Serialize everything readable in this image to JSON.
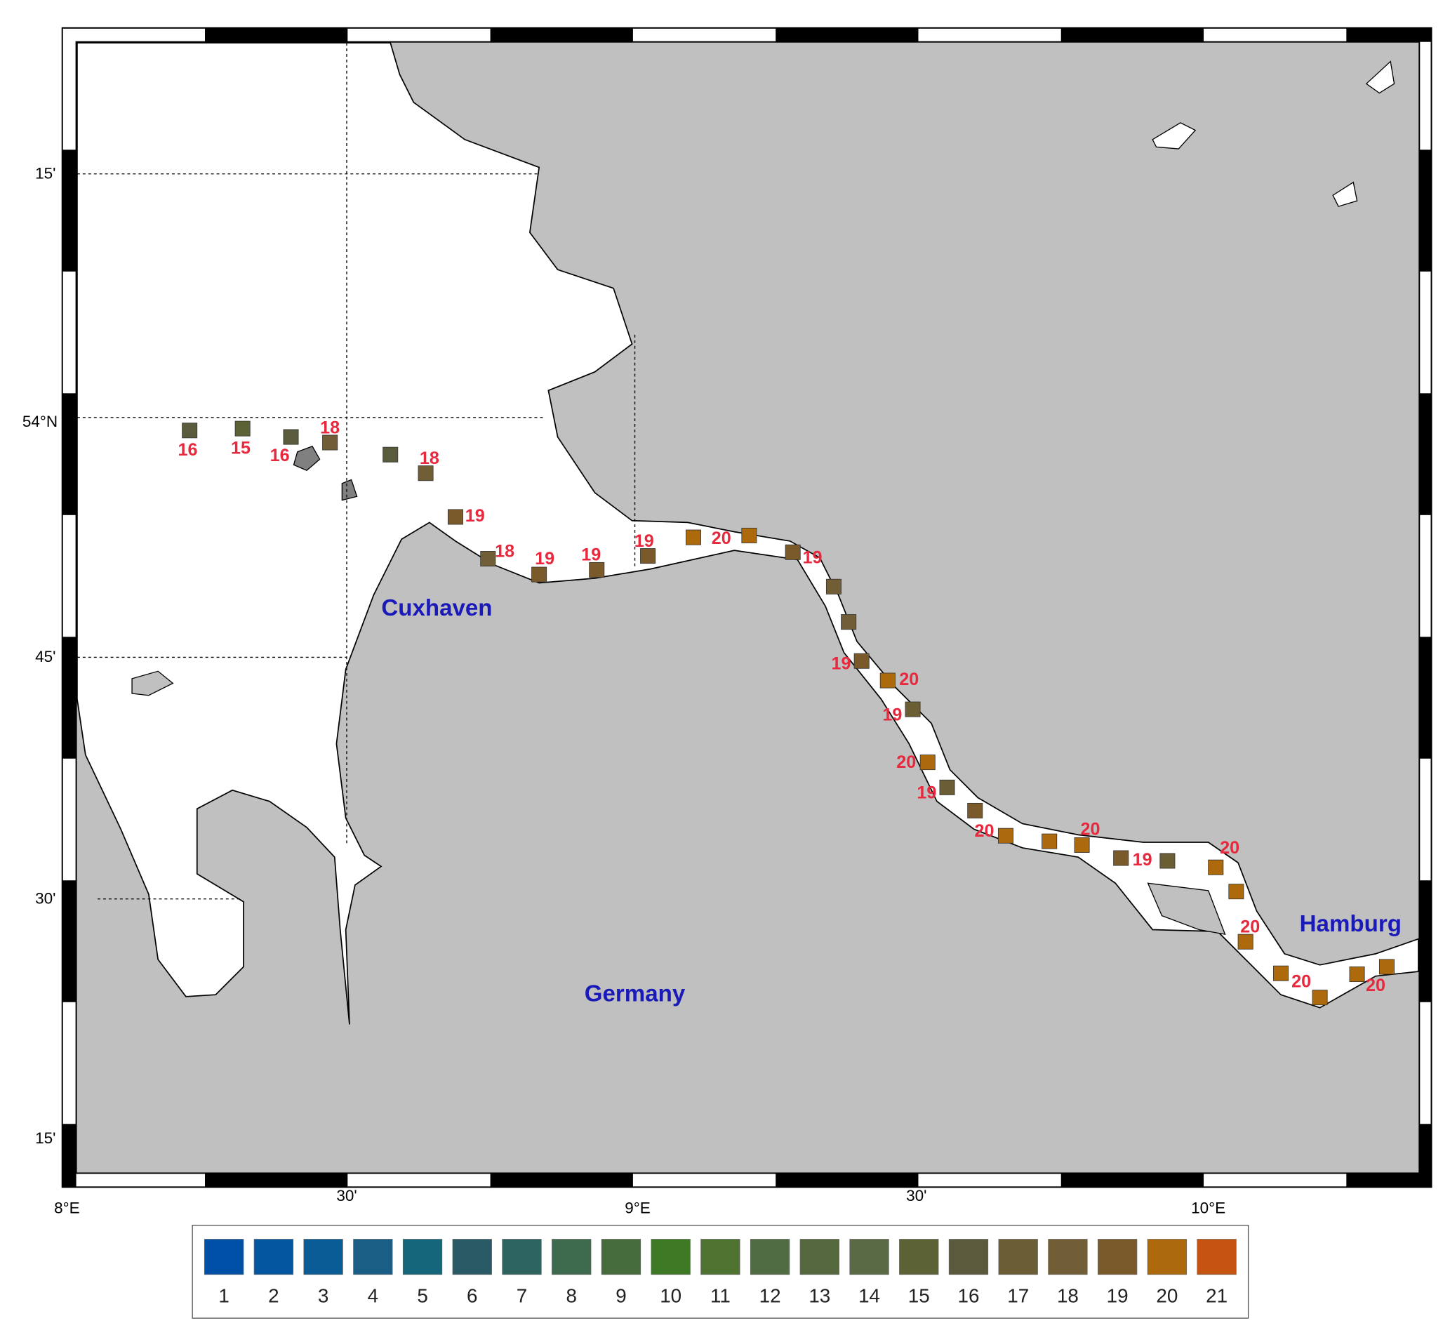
{
  "axes": {
    "lon_ticks": [
      "8°E",
      "30'",
      "9°E",
      "30'",
      "10°E"
    ],
    "lat_ticks": [
      "15'",
      "54°N",
      "45'",
      "30'",
      "15'"
    ]
  },
  "places": [
    "Cuxhaven",
    "Germany",
    "Hamburg"
  ],
  "stations": [
    "16",
    "15",
    "16",
    "18",
    "18",
    "19",
    "18",
    "19",
    "19",
    "19",
    "20",
    "19",
    "19",
    "20",
    "19",
    "20",
    "19",
    "20",
    "20",
    "19",
    "20",
    "20",
    "20",
    "20"
  ],
  "legend": [
    {
      "label": "1",
      "color": "#0050a8"
    },
    {
      "label": "2",
      "color": "#0556a0"
    },
    {
      "label": "3",
      "color": "#0a5c96"
    },
    {
      "label": "4",
      "color": "#1a5e86"
    },
    {
      "label": "5",
      "color": "#14667a"
    },
    {
      "label": "6",
      "color": "#2a5a66"
    },
    {
      "label": "7",
      "color": "#2e6460"
    },
    {
      "label": "8",
      "color": "#3e6a4e"
    },
    {
      "label": "9",
      "color": "#466c3e"
    },
    {
      "label": "10",
      "color": "#3e7a26"
    },
    {
      "label": "11",
      "color": "#4e7230"
    },
    {
      "label": "12",
      "color": "#506c42"
    },
    {
      "label": "13",
      "color": "#56683e"
    },
    {
      "label": "14",
      "color": "#5a6a44"
    },
    {
      "label": "15",
      "color": "#5c6236"
    },
    {
      "label": "16",
      "color": "#5a5a3c"
    },
    {
      "label": "17",
      "color": "#6c5e34"
    },
    {
      "label": "18",
      "color": "#725e36"
    },
    {
      "label": "19",
      "color": "#7a5a2a"
    },
    {
      "label": "20",
      "color": "#ac6a0c"
    },
    {
      "label": "21",
      "color": "#c65410"
    }
  ]
}
